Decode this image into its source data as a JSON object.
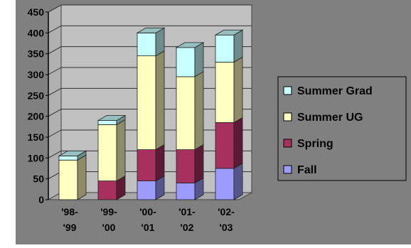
{
  "chart_data": {
    "type": "bar",
    "stacked": true,
    "three_d": true,
    "categories": [
      "'98-\n'99",
      "'99-\n'00",
      "'00-\n'01",
      "'01-\n'02",
      "'02-\n'03"
    ],
    "ylim": [
      0,
      450
    ],
    "yticks": [
      0,
      50,
      100,
      150,
      200,
      250,
      300,
      350,
      400,
      450
    ],
    "grid": true,
    "legend_position": "right",
    "series": [
      {
        "name": "Fall",
        "color": "#9c9cff",
        "values": [
          0,
          0,
          45,
          40,
          75
        ]
      },
      {
        "name": "Spring",
        "color": "#a8305f",
        "values": [
          0,
          45,
          75,
          80,
          110
        ]
      },
      {
        "name": "Summer UG",
        "color": "#ffffc0",
        "values": [
          95,
          135,
          225,
          175,
          145
        ]
      },
      {
        "name": "Summer Grad",
        "color": "#c8ffff",
        "values": [
          10,
          10,
          55,
          70,
          65
        ]
      }
    ],
    "legend_order": [
      "Summer Grad",
      "Summer UG",
      "Spring",
      "Fall"
    ],
    "colors": {
      "page_background": "#808080",
      "plot_back_wall": "#c0c0c0",
      "floor": "#a8a8a8",
      "legend_background": "#808080"
    }
  }
}
